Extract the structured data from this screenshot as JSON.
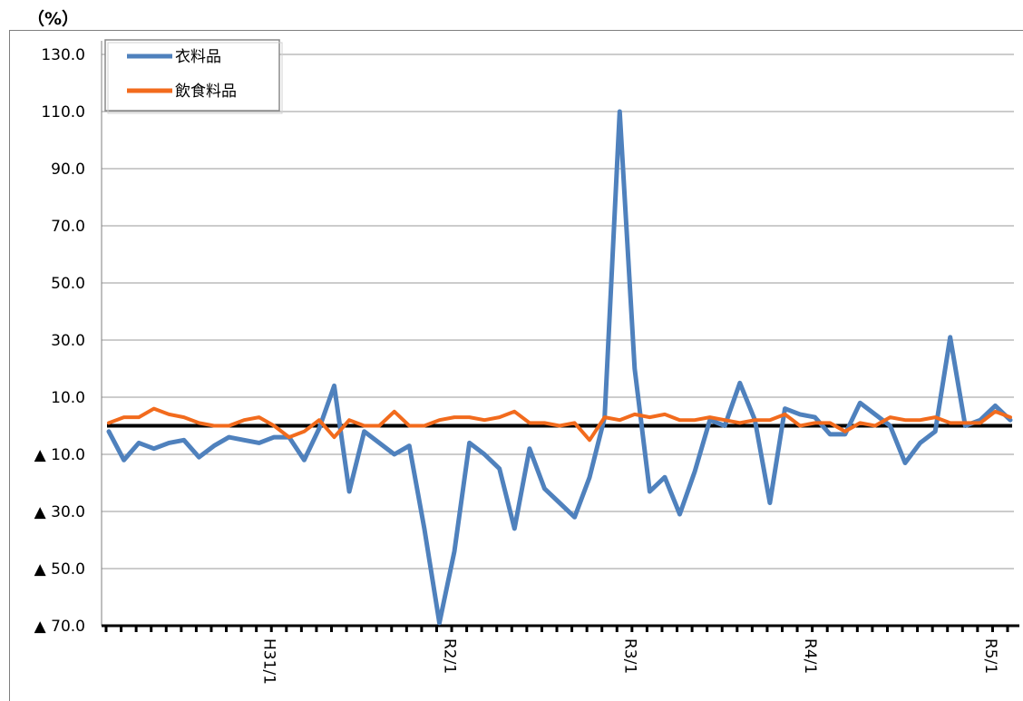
{
  "chart_data": {
    "type": "line",
    "unit": "（%）",
    "ylim": [
      -70,
      130
    ],
    "yticks": [
      130,
      110,
      90,
      70,
      50,
      30,
      10,
      -10,
      -30,
      -50,
      -70
    ],
    "ytick_labels": [
      "130.0",
      "110.0",
      "90.0",
      "70.0",
      "50.0",
      "30.0",
      "10.0",
      "▲ 10.0",
      "▲ 30.0",
      "▲ 50.0",
      "▲ 70.0"
    ],
    "x_ticklabels": [
      {
        "label": "H31/1",
        "index": 10
      },
      {
        "label": "R2/1",
        "index": 22
      },
      {
        "label": "R3/1",
        "index": 34
      },
      {
        "label": "R4/1",
        "index": 46
      },
      {
        "label": "R5/1",
        "index": 58
      }
    ],
    "n_points": 61,
    "grid": true,
    "legend_position": "top-left",
    "series": [
      {
        "name": "衣料品",
        "color": "#4f81bd",
        "values": [
          -2,
          -12,
          -6,
          -8,
          -6,
          -5,
          -11,
          -7,
          -4,
          -5,
          -6,
          -4,
          -4,
          -12,
          -1,
          14,
          -23,
          -2,
          -6,
          -10,
          -7,
          -36,
          -69,
          -44,
          -6,
          -10,
          -15,
          -36,
          -8,
          -22,
          -27,
          -32,
          -18,
          3,
          110,
          20,
          -23,
          -18,
          -31,
          -16,
          2,
          0,
          15,
          2,
          -27,
          6,
          4,
          3,
          -3,
          -3,
          8,
          4,
          0,
          -13,
          -6,
          -2,
          31,
          0,
          2,
          7,
          2
        ],
        "line_width": 5
      },
      {
        "name": "飲食料品",
        "color": "#f26b1d",
        "values": [
          1,
          3,
          3,
          6,
          4,
          3,
          1,
          0,
          0,
          2,
          3,
          0,
          -4,
          -2,
          2,
          -4,
          2,
          0,
          0,
          5,
          0,
          0,
          2,
          3,
          3,
          2,
          3,
          5,
          1,
          1,
          0,
          1,
          -5,
          3,
          2,
          4,
          3,
          4,
          2,
          2,
          3,
          2,
          1,
          2,
          2,
          4,
          0,
          1,
          1,
          -2,
          1,
          0,
          3,
          2,
          2,
          3,
          1,
          1,
          1,
          5,
          3
        ],
        "line_width": 4
      }
    ]
  }
}
